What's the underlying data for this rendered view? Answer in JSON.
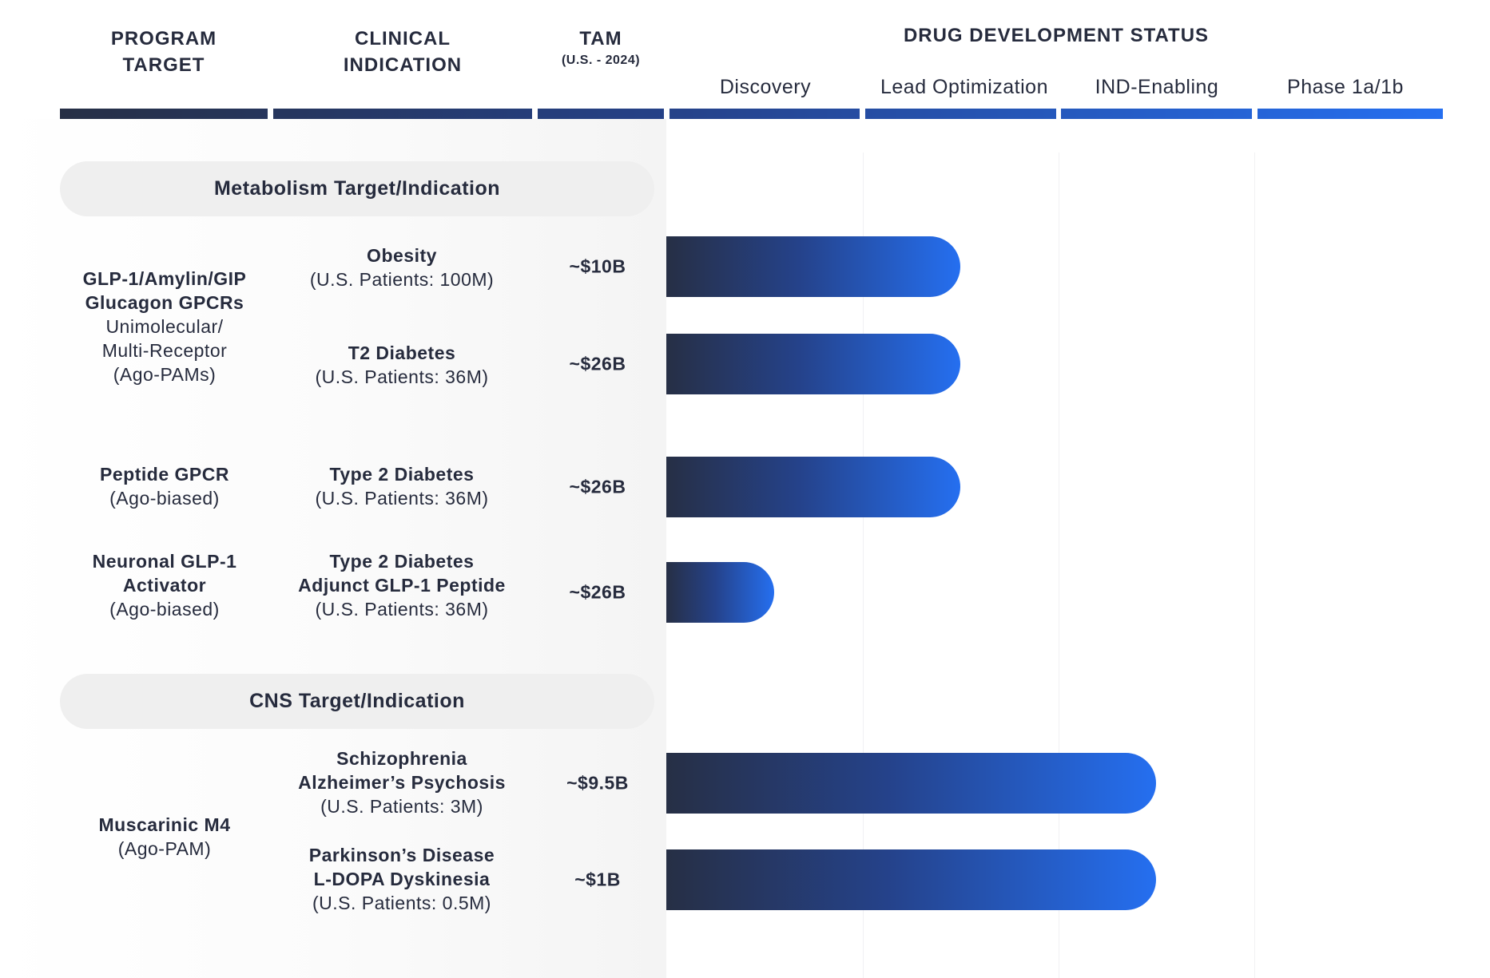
{
  "header": {
    "program_target": [
      "PROGRAM",
      "TARGET"
    ],
    "clinical_indication": [
      "CLINICAL",
      "INDICATION"
    ],
    "tam": "TAM",
    "tam_sub": "(U.S. - 2024)",
    "status": "DRUG DEVELOPMENT STATUS",
    "stages": [
      "Discovery",
      "Lead Optimization",
      "IND-Enabling",
      "Phase 1a/1b"
    ]
  },
  "colors": {
    "dark": "#262f45",
    "accent": "#256ff0",
    "text": "#262b3d",
    "band": "#efefef"
  },
  "sections": [
    {
      "title": "Metabolism Target/Indication"
    },
    {
      "title": "CNS Target/Indication"
    }
  ],
  "targets": [
    {
      "bold": [
        "GLP-1/Amylin/GIP",
        "Glucagon GPCRs"
      ],
      "normal": [
        "Unimolecular/",
        "Multi-Receptor",
        "(Ago-PAMs)"
      ]
    },
    {
      "bold": [
        "Peptide GPCR"
      ],
      "normal": [
        "(Ago-biased)"
      ]
    },
    {
      "bold": [
        "Neuronal GLP-1",
        "Activator"
      ],
      "normal": [
        "(Ago-biased)"
      ]
    },
    {
      "bold": [
        "Muscarinic M4"
      ],
      "normal": [
        "(Ago-PAM)"
      ]
    }
  ],
  "programs": [
    {
      "indication": [
        "Obesity"
      ],
      "patients": "(U.S. Patients: 100M)",
      "tam": "~$10B",
      "progress_stages": 1.5
    },
    {
      "indication": [
        "T2 Diabetes"
      ],
      "patients": "(U.S. Patients: 36M)",
      "tam": "~$26B",
      "progress_stages": 1.5
    },
    {
      "indication": [
        "Type 2 Diabetes"
      ],
      "patients": "(U.S. Patients: 36M)",
      "tam": "~$26B",
      "progress_stages": 1.5
    },
    {
      "indication": [
        "Type 2 Diabetes",
        "Adjunct GLP-1 Peptide"
      ],
      "patients": "(U.S. Patients: 36M)",
      "tam": "~$26B",
      "progress_stages": 0.55
    },
    {
      "indication": [
        "Schizophrenia",
        "Alzheimer’s Psychosis"
      ],
      "patients": "(U.S. Patients: 3M)",
      "tam": "~$9.5B",
      "progress_stages": 2.5
    },
    {
      "indication": [
        "Parkinson’s Disease",
        "L-DOPA Dyskinesia"
      ],
      "patients": "(U.S. Patients: 0.5M)",
      "tam": "~$1B",
      "progress_stages": 2.5
    }
  ]
}
